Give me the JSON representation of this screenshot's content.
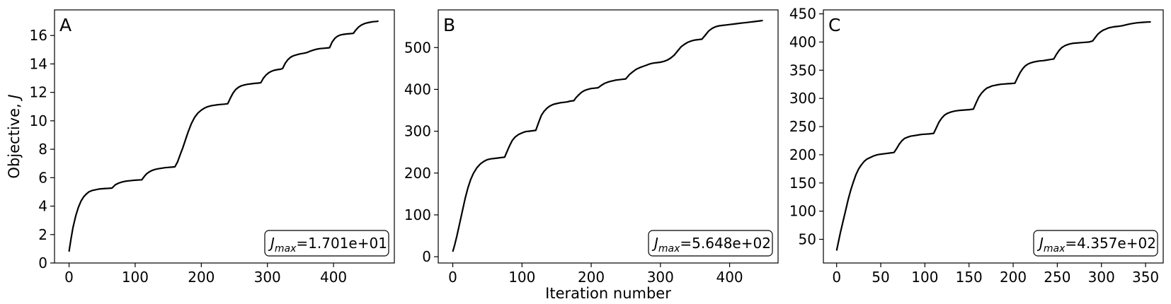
{
  "chart_data": [
    {
      "type": "line",
      "panel_label": "A",
      "ylabel": "Objective, J",
      "xlabel": "",
      "xlim": [
        -22,
        492
      ],
      "ylim": [
        0,
        17.8
      ],
      "xticks": [
        0,
        100,
        200,
        300,
        400
      ],
      "yticks": [
        0,
        2,
        4,
        6,
        8,
        10,
        12,
        14,
        16
      ],
      "annotation": {
        "symbol": "J",
        "subscript": "max",
        "value": "=1.701e+01"
      },
      "x": [
        0,
        3,
        6,
        10,
        14,
        18,
        22,
        26,
        30,
        35,
        40,
        45,
        50,
        55,
        60,
        65,
        70,
        75,
        80,
        85,
        90,
        95,
        100,
        110,
        114,
        118,
        122,
        126,
        130,
        135,
        140,
        145,
        150,
        155,
        160,
        164,
        168,
        172,
        176,
        180,
        185,
        190,
        195,
        200,
        205,
        210,
        215,
        220,
        225,
        230,
        235,
        240,
        244,
        248,
        252,
        256,
        260,
        265,
        270,
        275,
        280,
        285,
        290,
        294,
        298,
        302,
        306,
        310,
        315,
        320,
        323,
        327,
        331,
        335,
        339,
        343,
        347,
        351,
        355,
        360,
        365,
        370,
        375,
        380,
        385,
        390,
        394,
        398,
        402,
        406,
        410,
        415,
        420,
        425,
        430,
        434,
        438,
        442,
        446,
        450,
        455,
        460,
        465,
        468
      ],
      "y": [
        0.8,
        1.7,
        2.5,
        3.3,
        3.9,
        4.35,
        4.65,
        4.85,
        5.0,
        5.1,
        5.15,
        5.2,
        5.22,
        5.24,
        5.25,
        5.27,
        5.5,
        5.62,
        5.7,
        5.75,
        5.78,
        5.8,
        5.82,
        5.85,
        6.1,
        6.3,
        6.43,
        6.52,
        6.58,
        6.63,
        6.67,
        6.7,
        6.72,
        6.74,
        6.76,
        7.1,
        7.6,
        8.1,
        8.65,
        9.2,
        9.8,
        10.25,
        10.55,
        10.75,
        10.9,
        11.0,
        11.06,
        11.1,
        11.13,
        11.15,
        11.17,
        11.2,
        11.6,
        11.95,
        12.2,
        12.35,
        12.45,
        12.52,
        12.57,
        12.6,
        12.63,
        12.65,
        12.68,
        13.0,
        13.22,
        13.38,
        13.48,
        13.55,
        13.6,
        13.63,
        13.68,
        14.05,
        14.3,
        14.47,
        14.57,
        14.63,
        14.68,
        14.72,
        14.75,
        14.8,
        14.9,
        14.98,
        15.04,
        15.08,
        15.1,
        15.12,
        15.14,
        15.55,
        15.8,
        15.95,
        16.03,
        16.08,
        16.11,
        16.13,
        16.15,
        16.4,
        16.6,
        16.73,
        16.82,
        16.88,
        16.93,
        16.97,
        16.99,
        17.01
      ]
    },
    {
      "type": "line",
      "panel_label": "B",
      "ylabel": "",
      "xlabel": "Iteration number",
      "xlim": [
        -21,
        470
      ],
      "ylim": [
        -15,
        590
      ],
      "xticks": [
        0,
        100,
        200,
        300,
        400
      ],
      "yticks": [
        0,
        100,
        200,
        300,
        400,
        500
      ],
      "annotation": {
        "symbol": "J",
        "subscript": "max",
        "value": "=5.648e+02"
      },
      "x": [
        0,
        3,
        6,
        10,
        14,
        18,
        22,
        26,
        30,
        35,
        40,
        45,
        50,
        55,
        60,
        65,
        70,
        75,
        78,
        82,
        86,
        90,
        95,
        100,
        105,
        110,
        115,
        120,
        125,
        128,
        132,
        136,
        140,
        145,
        150,
        155,
        160,
        165,
        170,
        175,
        178,
        182,
        186,
        190,
        195,
        200,
        205,
        210,
        215,
        220,
        225,
        230,
        235,
        240,
        245,
        250,
        255,
        260,
        265,
        270,
        275,
        280,
        285,
        290,
        295,
        300,
        305,
        310,
        315,
        320,
        325,
        330,
        335,
        340,
        345,
        350,
        355,
        360,
        365,
        370,
        375,
        380,
        385,
        390,
        395,
        400,
        405,
        410,
        415,
        420,
        425,
        430,
        435,
        440,
        445,
        448
      ],
      "y": [
        12,
        30,
        50,
        80,
        110,
        140,
        165,
        185,
        200,
        213,
        222,
        228,
        232,
        234,
        235,
        236,
        237,
        238,
        250,
        265,
        278,
        286,
        292,
        296,
        299,
        300,
        301,
        302,
        325,
        338,
        348,
        355,
        360,
        364,
        366,
        368,
        369,
        370,
        372,
        373,
        380,
        387,
        393,
        397,
        400,
        402,
        403,
        404,
        410,
        415,
        418,
        420,
        422,
        423,
        424,
        425,
        435,
        442,
        448,
        452,
        455,
        458,
        461,
        463,
        464,
        465,
        467,
        470,
        475,
        482,
        492,
        502,
        508,
        513,
        516,
        518,
        519,
        520,
        530,
        540,
        546,
        550,
        552,
        553,
        554,
        555,
        556,
        557,
        558,
        559,
        560,
        561,
        562,
        563,
        564,
        564.8
      ]
    },
    {
      "type": "line",
      "panel_label": "C",
      "ylabel": "",
      "xlabel": "",
      "xlim": [
        -15,
        370
      ],
      "ylim": [
        8,
        457
      ],
      "xticks": [
        0,
        50,
        100,
        150,
        200,
        250,
        300,
        350
      ],
      "yticks": [
        50,
        100,
        150,
        200,
        250,
        300,
        350,
        400,
        450
      ],
      "annotation": {
        "symbol": "J",
        "subscript": "max",
        "value": "=4.357e+02"
      },
      "x": [
        0,
        2,
        4,
        7,
        10,
        13,
        16,
        19,
        22,
        25,
        28,
        31,
        34,
        38,
        42,
        46,
        50,
        55,
        60,
        65,
        68,
        71,
        74,
        77,
        80,
        84,
        88,
        92,
        96,
        100,
        105,
        110,
        113,
        116,
        119,
        122,
        125,
        128,
        131,
        134,
        138,
        142,
        146,
        150,
        155,
        158,
        161,
        164,
        167,
        170,
        173,
        176,
        179,
        182,
        186,
        190,
        194,
        198,
        202,
        205,
        208,
        211,
        214,
        217,
        220,
        223,
        226,
        230,
        234,
        238,
        242,
        246,
        249,
        252,
        255,
        258,
        261,
        264,
        267,
        270,
        274,
        278,
        282,
        286,
        290,
        293,
        296,
        299,
        302,
        305,
        308,
        311,
        314,
        317,
        320,
        324,
        328,
        332,
        336,
        340,
        344,
        348,
        352,
        356
      ],
      "y": [
        30,
        45,
        60,
        80,
        100,
        120,
        137,
        152,
        165,
        175,
        182,
        188,
        192,
        195,
        198,
        200,
        201,
        202,
        203,
        204,
        211,
        219,
        225,
        229,
        231,
        233,
        234,
        235,
        236,
        236.5,
        237,
        238,
        248,
        258,
        265,
        270,
        273,
        275,
        276.5,
        277.5,
        278.5,
        279,
        279.5,
        280,
        281,
        292,
        302,
        309,
        314,
        318,
        320,
        322,
        323,
        324,
        325,
        325.5,
        326,
        326.5,
        327,
        337,
        346,
        353,
        358,
        361,
        363,
        364.5,
        365.5,
        366.5,
        367,
        368,
        369,
        370,
        378,
        385,
        390,
        393,
        395,
        396.5,
        397.5,
        398,
        398.5,
        399,
        399.5,
        400,
        402,
        408,
        414,
        418,
        421,
        423,
        425,
        426,
        427,
        427.5,
        428,
        429,
        430.5,
        432,
        433,
        434,
        434.6,
        435,
        435.4,
        435.7
      ]
    }
  ]
}
